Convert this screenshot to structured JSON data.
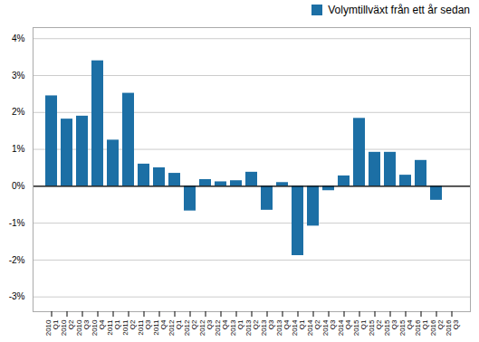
{
  "chart_data": {
    "type": "bar",
    "categories": [
      "2010\nQ1",
      "2010\nQ2",
      "2010\nQ3",
      "2010\nQ4",
      "2011\nQ1",
      "2011\nQ2",
      "2011\nQ3",
      "2011\nQ4",
      "2012\nQ1",
      "2012\nQ2",
      "2012\nQ3",
      "2012\nQ4",
      "2013\nQ1",
      "2013\nQ2",
      "2013\nQ3",
      "2013\nQ4",
      "2014\nQ1",
      "2014\nQ2",
      "2014\nQ3",
      "2014\nQ4",
      "2015\nQ1",
      "2015\nQ2",
      "2015\nQ3",
      "2015\nQ4",
      "2016\nQ1",
      "2016\nQ2",
      "2016\nQ3"
    ],
    "series": [
      {
        "name": "Volymtillväxt från ett år sedan",
        "color": "#1c6fa5",
        "values": [
          2.45,
          1.82,
          1.9,
          3.4,
          1.25,
          2.52,
          0.6,
          0.5,
          0.35,
          -0.67,
          0.18,
          0.12,
          0.15,
          0.38,
          -0.65,
          0.1,
          -1.88,
          -1.08,
          -0.12,
          0.28,
          1.84,
          0.92,
          0.92,
          0.3,
          0.7,
          -0.38,
          0.0
        ]
      }
    ],
    "ylim": [
      -3.4,
      4.3
    ],
    "yticks": [
      {
        "value": -3,
        "label": "-3%"
      },
      {
        "value": -2,
        "label": "-2%"
      },
      {
        "value": -1,
        "label": "-1%"
      },
      {
        "value": 0,
        "label": "0%"
      },
      {
        "value": 1,
        "label": "1%"
      },
      {
        "value": 2,
        "label": "2%"
      },
      {
        "value": 3,
        "label": "3%"
      },
      {
        "value": 4,
        "label": "4%"
      }
    ],
    "grid": true,
    "legend": "upper right"
  }
}
